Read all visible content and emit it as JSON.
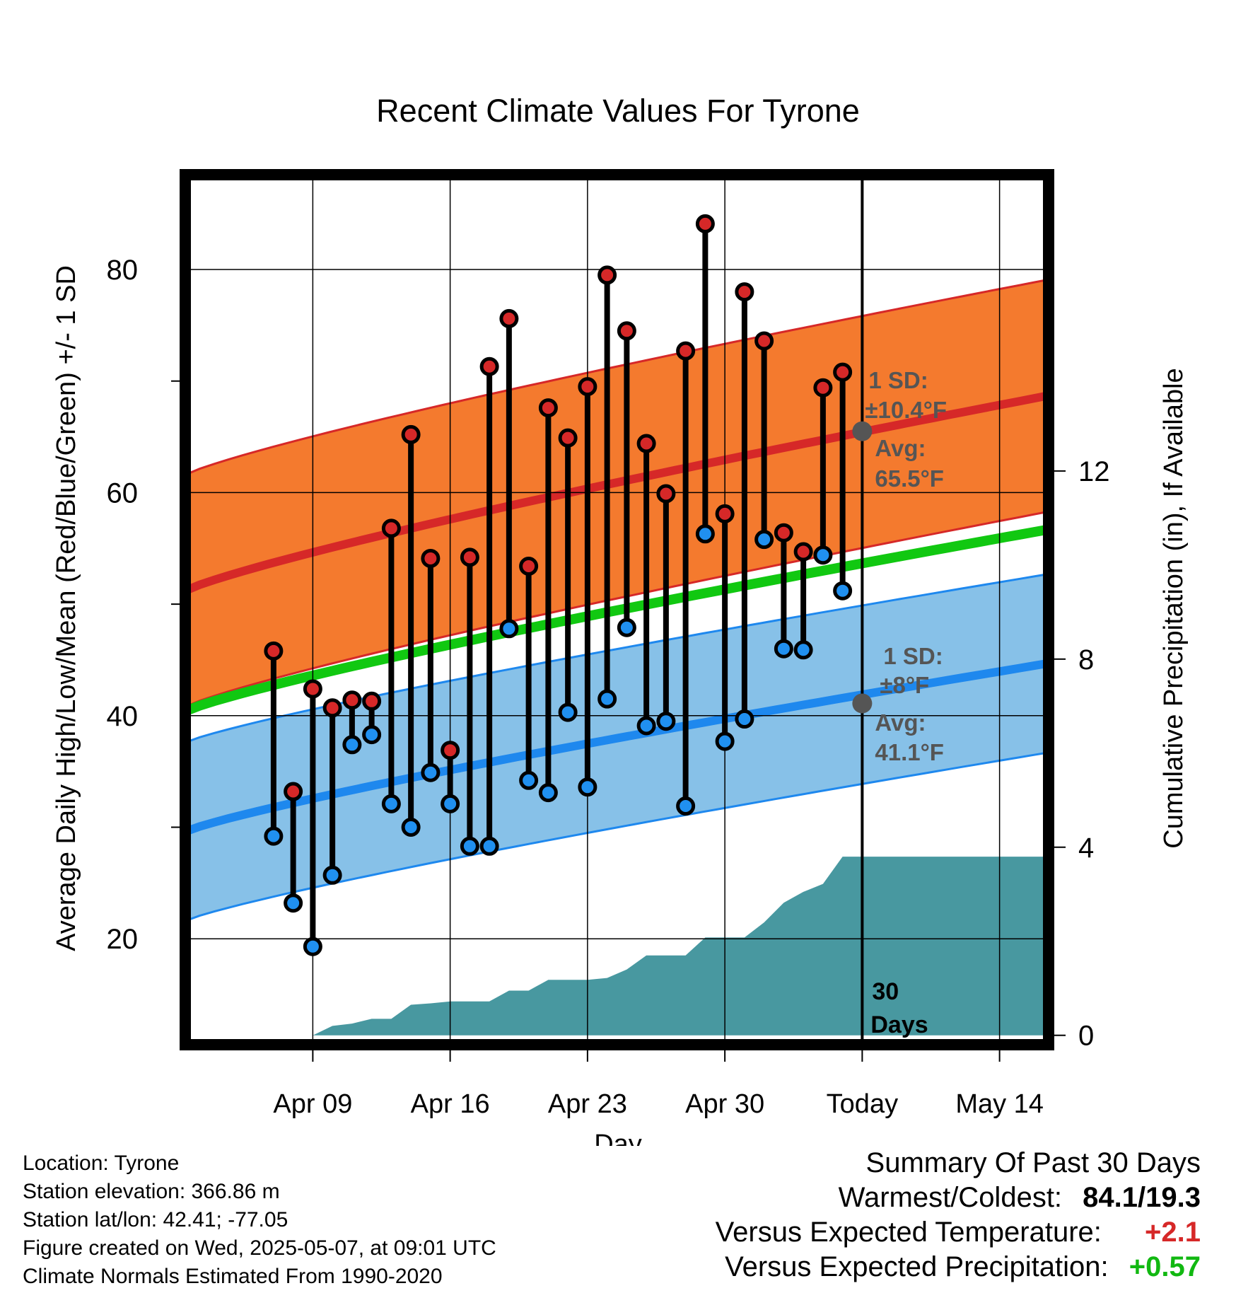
{
  "colors": {
    "high_band": "#f47a2e",
    "high_line": "#d62828",
    "low_band": "#87c1e8",
    "low_line": "#1e88ee",
    "mean_line": "#11c811",
    "precip_fill": "#4898a0",
    "high_dot": "#d62828",
    "low_dot": "#2090f0",
    "annotation": "#555555",
    "positive_temp": "#d62828",
    "positive_precip": "#11b811"
  },
  "chart_data": {
    "type": "line",
    "title": "Recent Climate Values For Tyrone",
    "xlabel": "Day",
    "ylabel": "Average Daily High/Low/Mean (Red/Blue/Green) +/- 1 SD",
    "y2label": "Cumulative Precipitation (in), If Available",
    "xlim_days": [
      -34.5,
      9.5
    ],
    "ylim": [
      10.5,
      88.5
    ],
    "y2lim": [
      -0.2,
      18.3
    ],
    "xticks": [
      {
        "day": -28,
        "label": "Apr 09"
      },
      {
        "day": -21,
        "label": "Apr 16"
      },
      {
        "day": -14,
        "label": "Apr 23"
      },
      {
        "day": -7,
        "label": "Apr 30"
      },
      {
        "day": 0,
        "label": "Today"
      },
      {
        "day": 7,
        "label": "May 14"
      }
    ],
    "yticks": [
      20,
      40,
      60,
      80
    ],
    "y2ticks": [
      0,
      4,
      8,
      12
    ],
    "today_label": "30 Days",
    "normal_high": {
      "start": 51.2,
      "end": 68.7,
      "sd": 10.4,
      "label_sd": "1 SD:",
      "label_sd_value": "±10.4°F",
      "label_avg": "Avg:",
      "label_avg_value": "65.5°F",
      "today_value": 65.5
    },
    "normal_low": {
      "start": 29.6,
      "end": 44.7,
      "sd": 8,
      "label_sd": "1 SD:",
      "label_sd_value": "±8°F",
      "label_avg": "Avg:",
      "label_avg_value": "41.1°F",
      "today_value": 41.1
    },
    "normal_mean": {
      "start": 40.4,
      "end": 56.7
    },
    "daily": [
      {
        "day": -30,
        "high": 45.8,
        "low": 29.2
      },
      {
        "day": -29,
        "high": 33.2,
        "low": 23.2
      },
      {
        "day": -28,
        "high": 42.4,
        "low": 19.3
      },
      {
        "day": -27,
        "high": 40.7,
        "low": 25.7
      },
      {
        "day": -26,
        "high": 41.4,
        "low": 37.4
      },
      {
        "day": -25,
        "high": 41.3,
        "low": 38.3
      },
      {
        "day": -24,
        "high": 56.8,
        "low": 32.1
      },
      {
        "day": -23,
        "high": 65.2,
        "low": 30.0
      },
      {
        "day": -22,
        "high": 54.1,
        "low": 34.9
      },
      {
        "day": -21,
        "high": 36.9,
        "low": 32.1
      },
      {
        "day": -20,
        "high": 54.2,
        "low": 28.3
      },
      {
        "day": -19,
        "high": 71.3,
        "low": 28.3
      },
      {
        "day": -18,
        "high": 75.6,
        "low": 47.8
      },
      {
        "day": -17,
        "high": 53.4,
        "low": 34.2
      },
      {
        "day": -16,
        "high": 67.6,
        "low": 33.1
      },
      {
        "day": -15,
        "high": 64.9,
        "low": 40.3
      },
      {
        "day": -14,
        "high": 69.5,
        "low": 33.6
      },
      {
        "day": -13,
        "high": 79.5,
        "low": 41.5
      },
      {
        "day": -12,
        "high": 74.5,
        "low": 47.9
      },
      {
        "day": -11,
        "high": 64.4,
        "low": 39.1
      },
      {
        "day": -10,
        "high": 59.9,
        "low": 39.5
      },
      {
        "day": -9,
        "high": 72.7,
        "low": 31.9
      },
      {
        "day": -8,
        "high": 84.1,
        "low": 56.3
      },
      {
        "day": -7,
        "high": 58.1,
        "low": 37.7
      },
      {
        "day": -6,
        "high": 78.0,
        "low": 39.7
      },
      {
        "day": -5,
        "high": 73.6,
        "low": 55.8
      },
      {
        "day": -4,
        "high": 56.4,
        "low": 46.0
      },
      {
        "day": -3,
        "high": 54.7,
        "low": 45.9
      },
      {
        "day": -2,
        "high": 69.4,
        "low": 54.4
      },
      {
        "day": -1,
        "high": 70.8,
        "low": 51.2
      }
    ],
    "precip_cumulative": [
      {
        "day": -34.5,
        "in": 0.0
      },
      {
        "day": -28,
        "in": 0.0
      },
      {
        "day": -27,
        "in": 0.2
      },
      {
        "day": -26,
        "in": 0.25
      },
      {
        "day": -25,
        "in": 0.35
      },
      {
        "day": -24,
        "in": 0.35
      },
      {
        "day": -23,
        "in": 0.65
      },
      {
        "day": -22,
        "in": 0.68
      },
      {
        "day": -21,
        "in": 0.72
      },
      {
        "day": -20,
        "in": 0.72
      },
      {
        "day": -19,
        "in": 0.72
      },
      {
        "day": -18,
        "in": 0.95
      },
      {
        "day": -17,
        "in": 0.95
      },
      {
        "day": -16,
        "in": 1.18
      },
      {
        "day": -15,
        "in": 1.18
      },
      {
        "day": -14,
        "in": 1.18
      },
      {
        "day": -13,
        "in": 1.22
      },
      {
        "day": -12,
        "in": 1.4
      },
      {
        "day": -11,
        "in": 1.7
      },
      {
        "day": -10,
        "in": 1.7
      },
      {
        "day": -9,
        "in": 1.7
      },
      {
        "day": -8,
        "in": 2.08
      },
      {
        "day": -7,
        "in": 2.08
      },
      {
        "day": -6,
        "in": 2.08
      },
      {
        "day": -5,
        "in": 2.4
      },
      {
        "day": -4,
        "in": 2.82
      },
      {
        "day": -3,
        "in": 3.05
      },
      {
        "day": -2,
        "in": 3.22
      },
      {
        "day": -1,
        "in": 3.8
      },
      {
        "day": 0,
        "in": 3.8
      },
      {
        "day": 9.5,
        "in": 3.8
      }
    ]
  },
  "info": {
    "location": "Location: Tyrone",
    "elevation": "Station elevation: 366.86 m",
    "latlon": "Station lat/lon: 42.41; -77.05",
    "created": "Figure created on Wed, 2025-05-07, at 09:01 UTC",
    "normals": "Climate Normals Estimated From 1990-2020"
  },
  "summary": {
    "title": "Summary Of Past 30 Days",
    "warmest_coldest_label": "Warmest/Coldest:",
    "warmest_coldest_value": "84.1/19.3",
    "temp_label": "Versus Expected Temperature:",
    "temp_value": "+2.1",
    "precip_label": "Versus Expected Precipitation:",
    "precip_value": "+0.57"
  }
}
